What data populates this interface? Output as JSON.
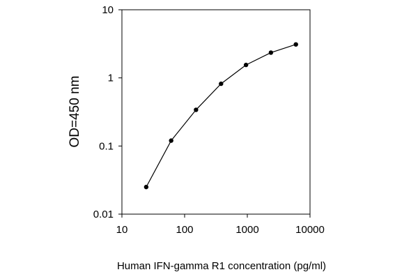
{
  "chart_data": {
    "type": "line",
    "title": "",
    "xlabel": "Human IFN-gamma R1 concentration (pg/ml)",
    "ylabel": "OD=450 nm",
    "x_scale": "log",
    "y_scale": "log",
    "xlim": [
      10,
      10000
    ],
    "ylim": [
      0.01,
      10
    ],
    "x_ticks": [
      {
        "value": 10,
        "label": "10"
      },
      {
        "value": 100,
        "label": "100"
      },
      {
        "value": 1000,
        "label": "1000"
      },
      {
        "value": 10000,
        "label": "10000"
      }
    ],
    "y_ticks": [
      {
        "value": 0.01,
        "label": "0.01"
      },
      {
        "value": 0.1,
        "label": "0.1"
      },
      {
        "value": 1,
        "label": "1"
      },
      {
        "value": 10,
        "label": "10"
      }
    ],
    "grid": false,
    "legend": "none",
    "series": [
      {
        "x": [
          24.4,
          61,
          152,
          381,
          953,
          2380,
          5950
        ],
        "y": [
          0.025,
          0.12,
          0.34,
          0.82,
          1.55,
          2.35,
          3.1
        ],
        "color": "#000000",
        "marker": "circle"
      }
    ]
  }
}
